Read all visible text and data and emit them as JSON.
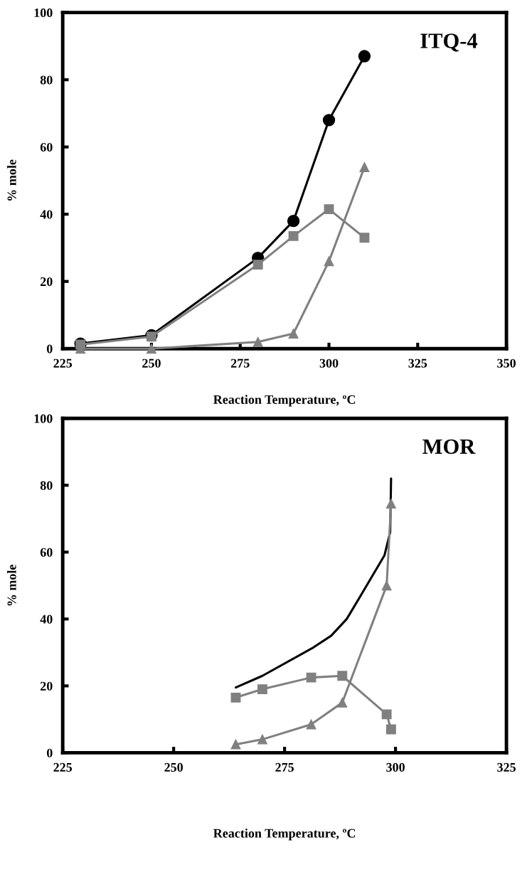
{
  "chart_data": [
    {
      "type": "line",
      "xlabel": "Reaction Temperature, ºC",
      "ylabel": "% mole",
      "annotations": [
        "ITQ-4"
      ],
      "xlim": [
        225,
        350
      ],
      "xticks": [
        225,
        250,
        275,
        300,
        325,
        350
      ],
      "ylim": [
        0,
        100
      ],
      "yticks": [
        0,
        20,
        40,
        60,
        80,
        100
      ],
      "grid": false,
      "legend": false,
      "line_style": "solid",
      "series": [
        {
          "color": "#000000",
          "marker": "circle",
          "x": [
            230,
            250,
            280,
            290,
            300,
            310
          ],
          "values": [
            1.5,
            4,
            27,
            38,
            68,
            87
          ]
        },
        {
          "color": "#808080",
          "marker": "square",
          "x": [
            230,
            250,
            280,
            290,
            300,
            310
          ],
          "values": [
            1.2,
            3.6,
            25,
            33.5,
            41.5,
            33
          ]
        },
        {
          "color": "#808080",
          "marker": "triangle",
          "x": [
            230,
            250,
            280,
            290,
            300,
            310
          ],
          "values": [
            0,
            0,
            2,
            4.5,
            26,
            54
          ]
        }
      ]
    },
    {
      "type": "line",
      "xlabel": "Reaction Temperature, ºC",
      "ylabel": "% mole",
      "annotations": [
        "MOR"
      ],
      "xlim": [
        225,
        325
      ],
      "xticks": [
        225,
        250,
        275,
        300,
        325
      ],
      "ylim": [
        0,
        100
      ],
      "yticks": [
        0,
        20,
        40,
        60,
        80,
        100
      ],
      "grid": false,
      "legend": false,
      "line_style": "solid",
      "series": [
        {
          "color": "#000000",
          "marker": "none",
          "x": [
            264,
            270,
            281.5,
            285.5,
            289,
            293.5,
            297.5,
            298.8,
            299
          ],
          "values": [
            19.5,
            23,
            31.5,
            35,
            40,
            50,
            59,
            66,
            82
          ]
        },
        {
          "color": "#808080",
          "marker": "square",
          "x": [
            264,
            270,
            281,
            288,
            298,
            299
          ],
          "values": [
            16.5,
            19,
            22.5,
            23,
            11.5,
            7
          ]
        },
        {
          "color": "#808080",
          "marker": "triangle",
          "x": [
            264,
            270,
            281,
            288,
            298,
            299
          ],
          "values": [
            2.5,
            4,
            8.5,
            15,
            50,
            74.5
          ]
        }
      ]
    }
  ]
}
